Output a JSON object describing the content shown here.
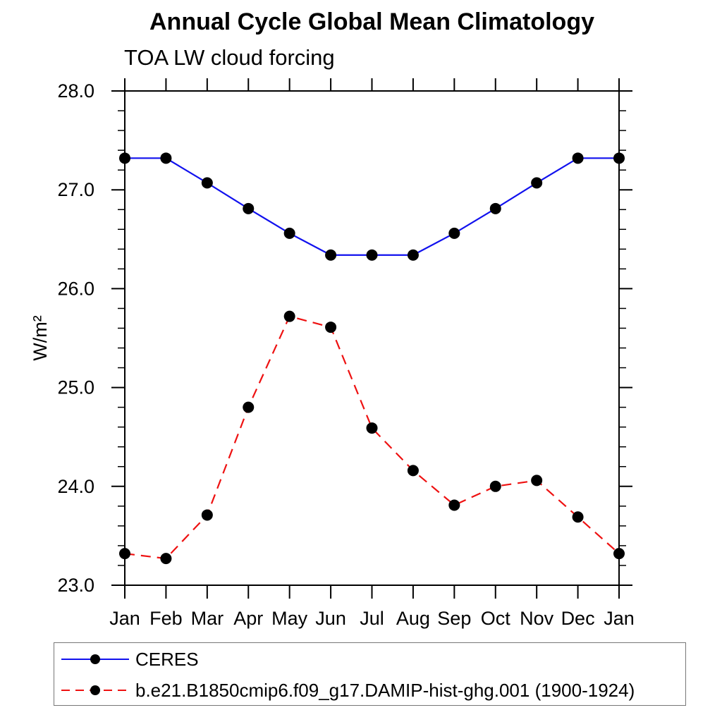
{
  "chart_data": {
    "type": "line",
    "title": "Annual Cycle Global Mean Climatology",
    "subtitle": "TOA LW cloud forcing",
    "ylabel": "W/m²",
    "xlabel": "",
    "categories": [
      "Jan",
      "Feb",
      "Mar",
      "Apr",
      "May",
      "Jun",
      "Jul",
      "Aug",
      "Sep",
      "Oct",
      "Nov",
      "Dec",
      "Jan"
    ],
    "ylim": [
      23.0,
      28.0
    ],
    "ytick_values": [
      23.0,
      24.0,
      25.0,
      26.0,
      27.0,
      28.0
    ],
    "ytick_labels": [
      "23.0",
      "24.0",
      "25.0",
      "26.0",
      "27.0",
      "28.0"
    ],
    "ytick_minor_step": 0.2,
    "grid": false,
    "axis_color": "#000000",
    "marker_color": "#000000",
    "legend_position": "bottom-left",
    "series": [
      {
        "name": "CERES",
        "color": "#1111ee",
        "line_style": "solid",
        "marker": "filled-circle",
        "values": [
          27.32,
          27.32,
          27.07,
          26.81,
          26.56,
          26.34,
          26.34,
          26.34,
          26.56,
          26.81,
          27.07,
          27.32,
          27.32
        ]
      },
      {
        "name": "b.e21.B1850cmip6.f09_g17.DAMIP-hist-ghg.001 (1900-1924)",
        "color": "#ee1111",
        "line_style": "dashed",
        "marker": "filled-circle",
        "values": [
          23.32,
          23.27,
          23.71,
          24.8,
          25.72,
          25.61,
          24.59,
          24.16,
          23.81,
          24.0,
          24.06,
          23.69,
          23.32
        ]
      }
    ]
  }
}
